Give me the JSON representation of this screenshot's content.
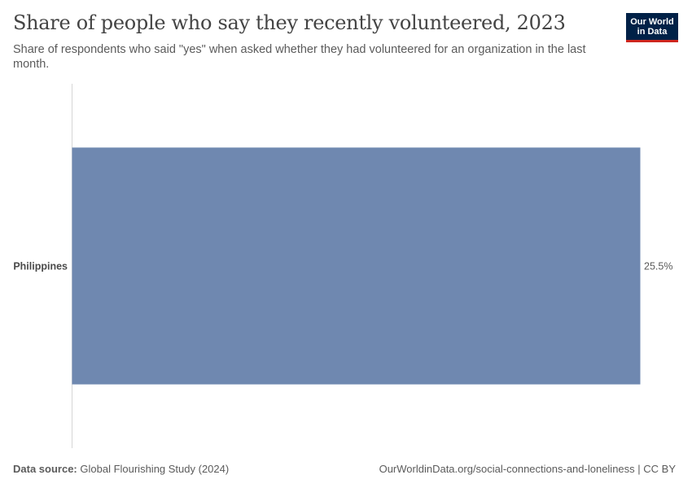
{
  "header": {
    "title": "Share of people who say they recently volunteered, 2023",
    "subtitle": "Share of respondents who said \"yes\" when asked whether they had volunteered for an organization in the last month."
  },
  "logo": {
    "line1": "Our World",
    "line2": "in Data"
  },
  "footer": {
    "source_label": "Data source:",
    "source_text": "Global Flourishing Study (2024)",
    "url_text": "OurWorldinData.org/social-connections-and-loneliness | CC BY"
  },
  "colors": {
    "bar": "#6f88b0",
    "axis": "#d6d6d6",
    "brand": "#002147",
    "brand_accent": "#ce261e"
  },
  "chart_data": {
    "type": "bar",
    "orientation": "horizontal",
    "categories": [
      "Philippines"
    ],
    "values": [
      25.5
    ],
    "value_labels": [
      "25.5%"
    ],
    "title": "Share of people who say they recently volunteered, 2023",
    "xlim": [
      0,
      25.5
    ]
  }
}
